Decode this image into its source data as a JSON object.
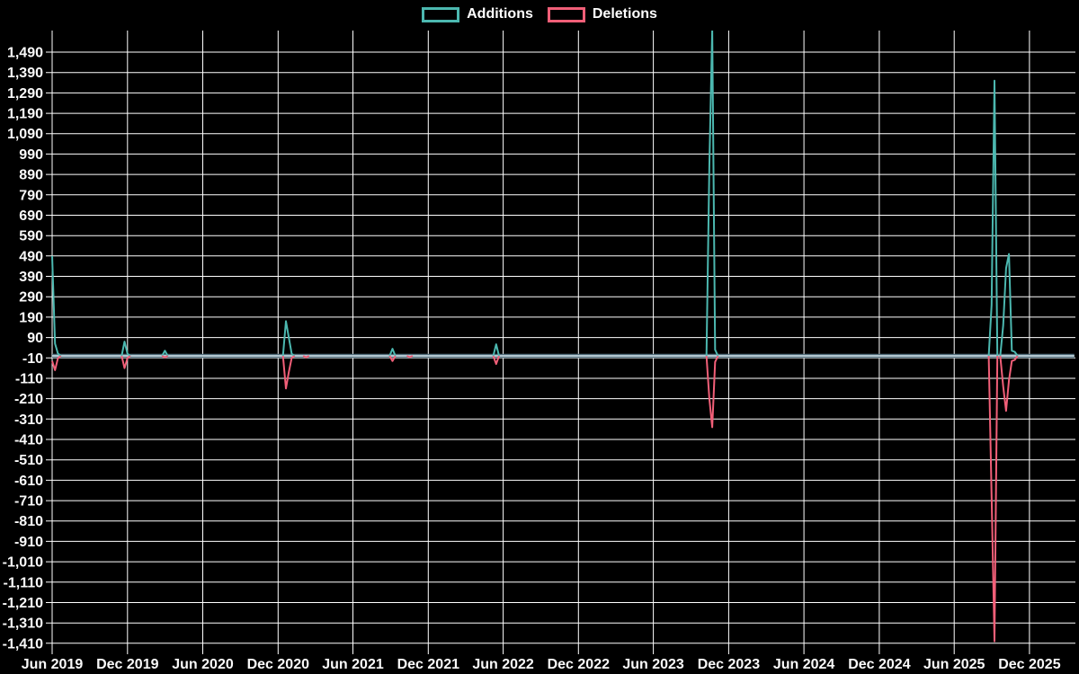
{
  "page": {
    "background": "#000000"
  },
  "legend": {
    "items": [
      {
        "label": "Additions",
        "color": "#4cb8b0"
      },
      {
        "label": "Deletions",
        "color": "#f15f78"
      }
    ]
  },
  "chart_data": {
    "type": "line",
    "title": "",
    "xlabel": "",
    "ylabel": "",
    "grid": true,
    "legend_position": "top-center",
    "ylim": [
      -1410,
      1490
    ],
    "colors": {
      "additions": "#4cb8b0",
      "deletions": "#f15f78",
      "grid": "#ffffff",
      "text": "#fafafa",
      "background": "#000000",
      "baseline_outer": "#54707e",
      "baseline_inner": "#b5c8d1"
    },
    "y_axis": {
      "tick_labels": [
        "1,490",
        "1,390",
        "1,290",
        "1,190",
        "1,090",
        "990",
        "890",
        "790",
        "690",
        "590",
        "490",
        "390",
        "290",
        "190",
        "90",
        "-10",
        "-110",
        "-210",
        "-310",
        "-410",
        "-510",
        "-610",
        "-710",
        "-810",
        "-910",
        "-1,010",
        "-1,110",
        "-1,210",
        "-1,310",
        "-1,410"
      ]
    },
    "x_axis": {
      "ticks": [
        {
          "label": "Jun 2019",
          "date": "2019-06-01"
        },
        {
          "label": "Dec 2019",
          "date": "2019-12-01"
        },
        {
          "label": "Jun 2020",
          "date": "2020-06-01"
        },
        {
          "label": "Dec 2020",
          "date": "2020-12-01"
        },
        {
          "label": "Jun 2021",
          "date": "2021-06-01"
        },
        {
          "label": "Dec 2021",
          "date": "2021-12-01"
        },
        {
          "label": "Jun 2022",
          "date": "2022-06-01"
        },
        {
          "label": "Dec 2022",
          "date": "2022-12-01"
        },
        {
          "label": "Jun 2023",
          "date": "2023-06-01"
        },
        {
          "label": "Dec 2023",
          "date": "2023-12-01"
        },
        {
          "label": "Jun 2024",
          "date": "2024-06-01"
        },
        {
          "label": "Dec 2024",
          "date": "2024-12-01"
        },
        {
          "label": "Jun 2025",
          "date": "2025-06-01"
        },
        {
          "label": "Dec 2025",
          "date": "2025-12-01"
        }
      ]
    },
    "baseline": {
      "value": 0,
      "start": "2019-06-01",
      "end": "2026-03-20"
    },
    "series": [
      {
        "name": "Additions",
        "color": "#4cb8b0",
        "segments": [
          [
            [
              "2019-06-01",
              490
            ],
            [
              "2019-06-08",
              60
            ],
            [
              "2019-06-15",
              12
            ],
            [
              "2019-06-22",
              0
            ]
          ],
          [
            [
              "2019-11-17",
              0
            ],
            [
              "2019-11-24",
              70
            ],
            [
              "2019-12-01",
              10
            ],
            [
              "2019-12-08",
              0
            ]
          ],
          [
            [
              "2020-02-23",
              0
            ],
            [
              "2020-03-01",
              25
            ],
            [
              "2020-03-08",
              0
            ]
          ],
          [
            [
              "2020-12-13",
              0
            ],
            [
              "2020-12-20",
              170
            ],
            [
              "2020-12-27",
              90
            ],
            [
              "2021-01-03",
              10
            ],
            [
              "2021-01-10",
              0
            ]
          ],
          [
            [
              "2021-08-29",
              0
            ],
            [
              "2021-09-05",
              35
            ],
            [
              "2021-09-12",
              0
            ]
          ],
          [
            [
              "2022-05-08",
              0
            ],
            [
              "2022-05-15",
              57
            ],
            [
              "2022-05-22",
              0
            ]
          ],
          [
            [
              "2023-10-08",
              0
            ],
            [
              "2023-10-15",
              930
            ],
            [
              "2023-10-22",
              1600
            ],
            [
              "2023-10-29",
              30
            ],
            [
              "2023-11-05",
              0
            ]
          ],
          [
            [
              "2025-08-24",
              0
            ],
            [
              "2025-08-31",
              250
            ],
            [
              "2025-09-07",
              1350
            ],
            [
              "2025-09-14",
              0
            ]
          ],
          [
            [
              "2025-09-21",
              0
            ],
            [
              "2025-09-28",
              150
            ],
            [
              "2025-10-05",
              430
            ],
            [
              "2025-10-12",
              500
            ],
            [
              "2025-10-19",
              25
            ],
            [
              "2025-10-26",
              20
            ],
            [
              "2025-11-02",
              0
            ]
          ]
        ]
      },
      {
        "name": "Deletions",
        "color": "#f15f78",
        "segments": [
          [
            [
              "2019-06-01",
              -25
            ],
            [
              "2019-06-08",
              -70
            ],
            [
              "2019-06-15",
              -12
            ],
            [
              "2019-06-22",
              0
            ]
          ],
          [
            [
              "2019-11-17",
              0
            ],
            [
              "2019-11-24",
              -60
            ],
            [
              "2019-12-01",
              -10
            ],
            [
              "2019-12-08",
              0
            ]
          ],
          [
            [
              "2020-02-23",
              0
            ],
            [
              "2020-03-01",
              -8
            ],
            [
              "2020-03-08",
              0
            ]
          ],
          [
            [
              "2020-12-13",
              0
            ],
            [
              "2020-12-20",
              -160
            ],
            [
              "2020-12-27",
              -80
            ],
            [
              "2021-01-03",
              -10
            ],
            [
              "2021-01-10",
              0
            ]
          ],
          [
            [
              "2021-01-31",
              0
            ],
            [
              "2021-02-07",
              -8
            ],
            [
              "2021-02-14",
              0
            ]
          ],
          [
            [
              "2021-08-29",
              0
            ],
            [
              "2021-09-05",
              -25
            ],
            [
              "2021-09-12",
              0
            ]
          ],
          [
            [
              "2021-10-10",
              0
            ],
            [
              "2021-10-17",
              -6
            ],
            [
              "2021-10-24",
              0
            ]
          ],
          [
            [
              "2022-05-08",
              0
            ],
            [
              "2022-05-15",
              -40
            ],
            [
              "2022-05-22",
              0
            ]
          ],
          [
            [
              "2023-10-08",
              0
            ],
            [
              "2023-10-15",
              -210
            ],
            [
              "2023-10-22",
              -350
            ],
            [
              "2023-10-29",
              -30
            ],
            [
              "2023-11-05",
              0
            ]
          ],
          [
            [
              "2025-08-24",
              0
            ],
            [
              "2025-08-31",
              -690
            ],
            [
              "2025-09-07",
              -1400
            ],
            [
              "2025-09-14",
              0
            ]
          ],
          [
            [
              "2025-09-21",
              0
            ],
            [
              "2025-09-28",
              -150
            ],
            [
              "2025-10-05",
              -270
            ],
            [
              "2025-10-12",
              -120
            ],
            [
              "2025-10-19",
              -25
            ],
            [
              "2025-10-26",
              -20
            ],
            [
              "2025-11-02",
              0
            ]
          ]
        ]
      }
    ]
  }
}
